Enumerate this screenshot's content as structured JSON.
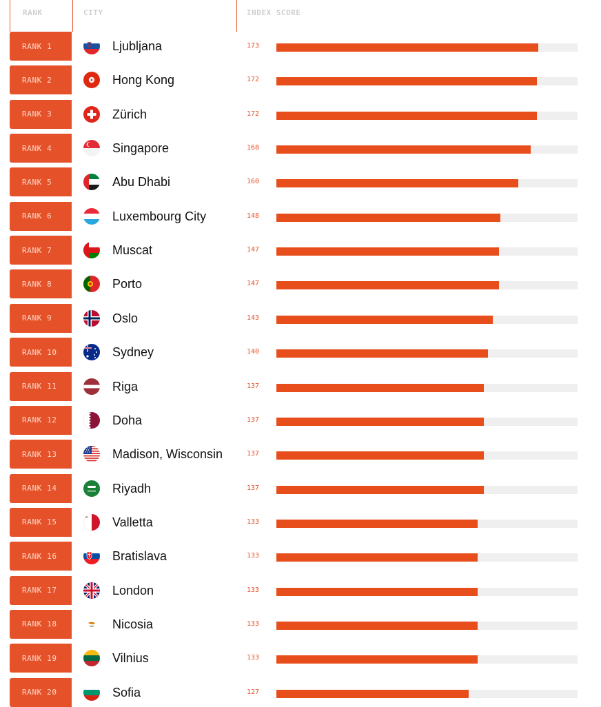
{
  "header": {
    "rank_label": "RANK",
    "city_label": "CITY",
    "score_label": "INDEX SCORE"
  },
  "colors": {
    "accent": "#e5522a",
    "bar_fill": "#e84e1b",
    "bar_track": "#efefef",
    "row_background": "#ffffff"
  },
  "chart_data": {
    "type": "bar",
    "orientation": "horizontal",
    "xlim": [
      0,
      199
    ],
    "grid": false,
    "rows": [
      {
        "rank": "RANK 1",
        "city": "Ljubljana",
        "flag": "slovenia-flag-icon",
        "score": 173
      },
      {
        "rank": "RANK 2",
        "city": "Hong Kong",
        "flag": "hong-kong-flag-icon",
        "score": 172
      },
      {
        "rank": "RANK 3",
        "city": "Zürich",
        "flag": "switzerland-flag-icon",
        "score": 172
      },
      {
        "rank": "RANK 4",
        "city": "Singapore",
        "flag": "singapore-flag-icon",
        "score": 168
      },
      {
        "rank": "RANK 5",
        "city": "Abu Dhabi",
        "flag": "uae-flag-icon",
        "score": 160
      },
      {
        "rank": "RANK 6",
        "city": "Luxembourg City",
        "flag": "luxembourg-flag-icon",
        "score": 148
      },
      {
        "rank": "RANK 7",
        "city": "Muscat",
        "flag": "oman-flag-icon",
        "score": 147
      },
      {
        "rank": "RANK 8",
        "city": "Porto",
        "flag": "portugal-flag-icon",
        "score": 147
      },
      {
        "rank": "RANK 9",
        "city": "Oslo",
        "flag": "norway-flag-icon",
        "score": 143
      },
      {
        "rank": "RANK 10",
        "city": "Sydney",
        "flag": "australia-flag-icon",
        "score": 140
      },
      {
        "rank": "RANK 11",
        "city": "Riga",
        "flag": "latvia-flag-icon",
        "score": 137
      },
      {
        "rank": "RANK 12",
        "city": "Doha",
        "flag": "qatar-flag-icon",
        "score": 137
      },
      {
        "rank": "RANK 13",
        "city": "Madison, Wisconsin",
        "flag": "usa-flag-icon",
        "score": 137
      },
      {
        "rank": "RANK 14",
        "city": "Riyadh",
        "flag": "saudi-arabia-flag-icon",
        "score": 137
      },
      {
        "rank": "RANK 15",
        "city": "Valletta",
        "flag": "malta-flag-icon",
        "score": 133
      },
      {
        "rank": "RANK 16",
        "city": "Bratislava",
        "flag": "slovakia-flag-icon",
        "score": 133
      },
      {
        "rank": "RANK 17",
        "city": "London",
        "flag": "uk-flag-icon",
        "score": 133
      },
      {
        "rank": "RANK 18",
        "city": "Nicosia",
        "flag": "cyprus-flag-icon",
        "score": 133
      },
      {
        "rank": "RANK 19",
        "city": "Vilnius",
        "flag": "lithuania-flag-icon",
        "score": 133
      },
      {
        "rank": "RANK 20",
        "city": "Sofia",
        "flag": "bulgaria-flag-icon",
        "score": 127
      }
    ]
  }
}
